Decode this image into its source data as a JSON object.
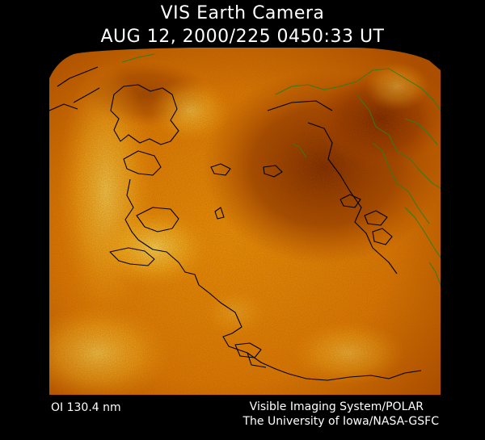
{
  "header": {
    "title": "VIS Earth Camera",
    "timestamp": "AUG 12, 2000/225 0450:33 UT"
  },
  "image": {
    "icon": "auroral-earth-image",
    "colors": {
      "background": "#000000",
      "dark": "#6b1a00",
      "mid": "#d86a00",
      "bright": "#ffd23a",
      "coastline_black": "#000000",
      "coastline_green": "#2f7d1a"
    }
  },
  "footer": {
    "filter": "OI  130.4 nm",
    "instrument": "Visible Imaging System/POLAR",
    "institution": "The University of Iowa/NASA-GSFC"
  }
}
